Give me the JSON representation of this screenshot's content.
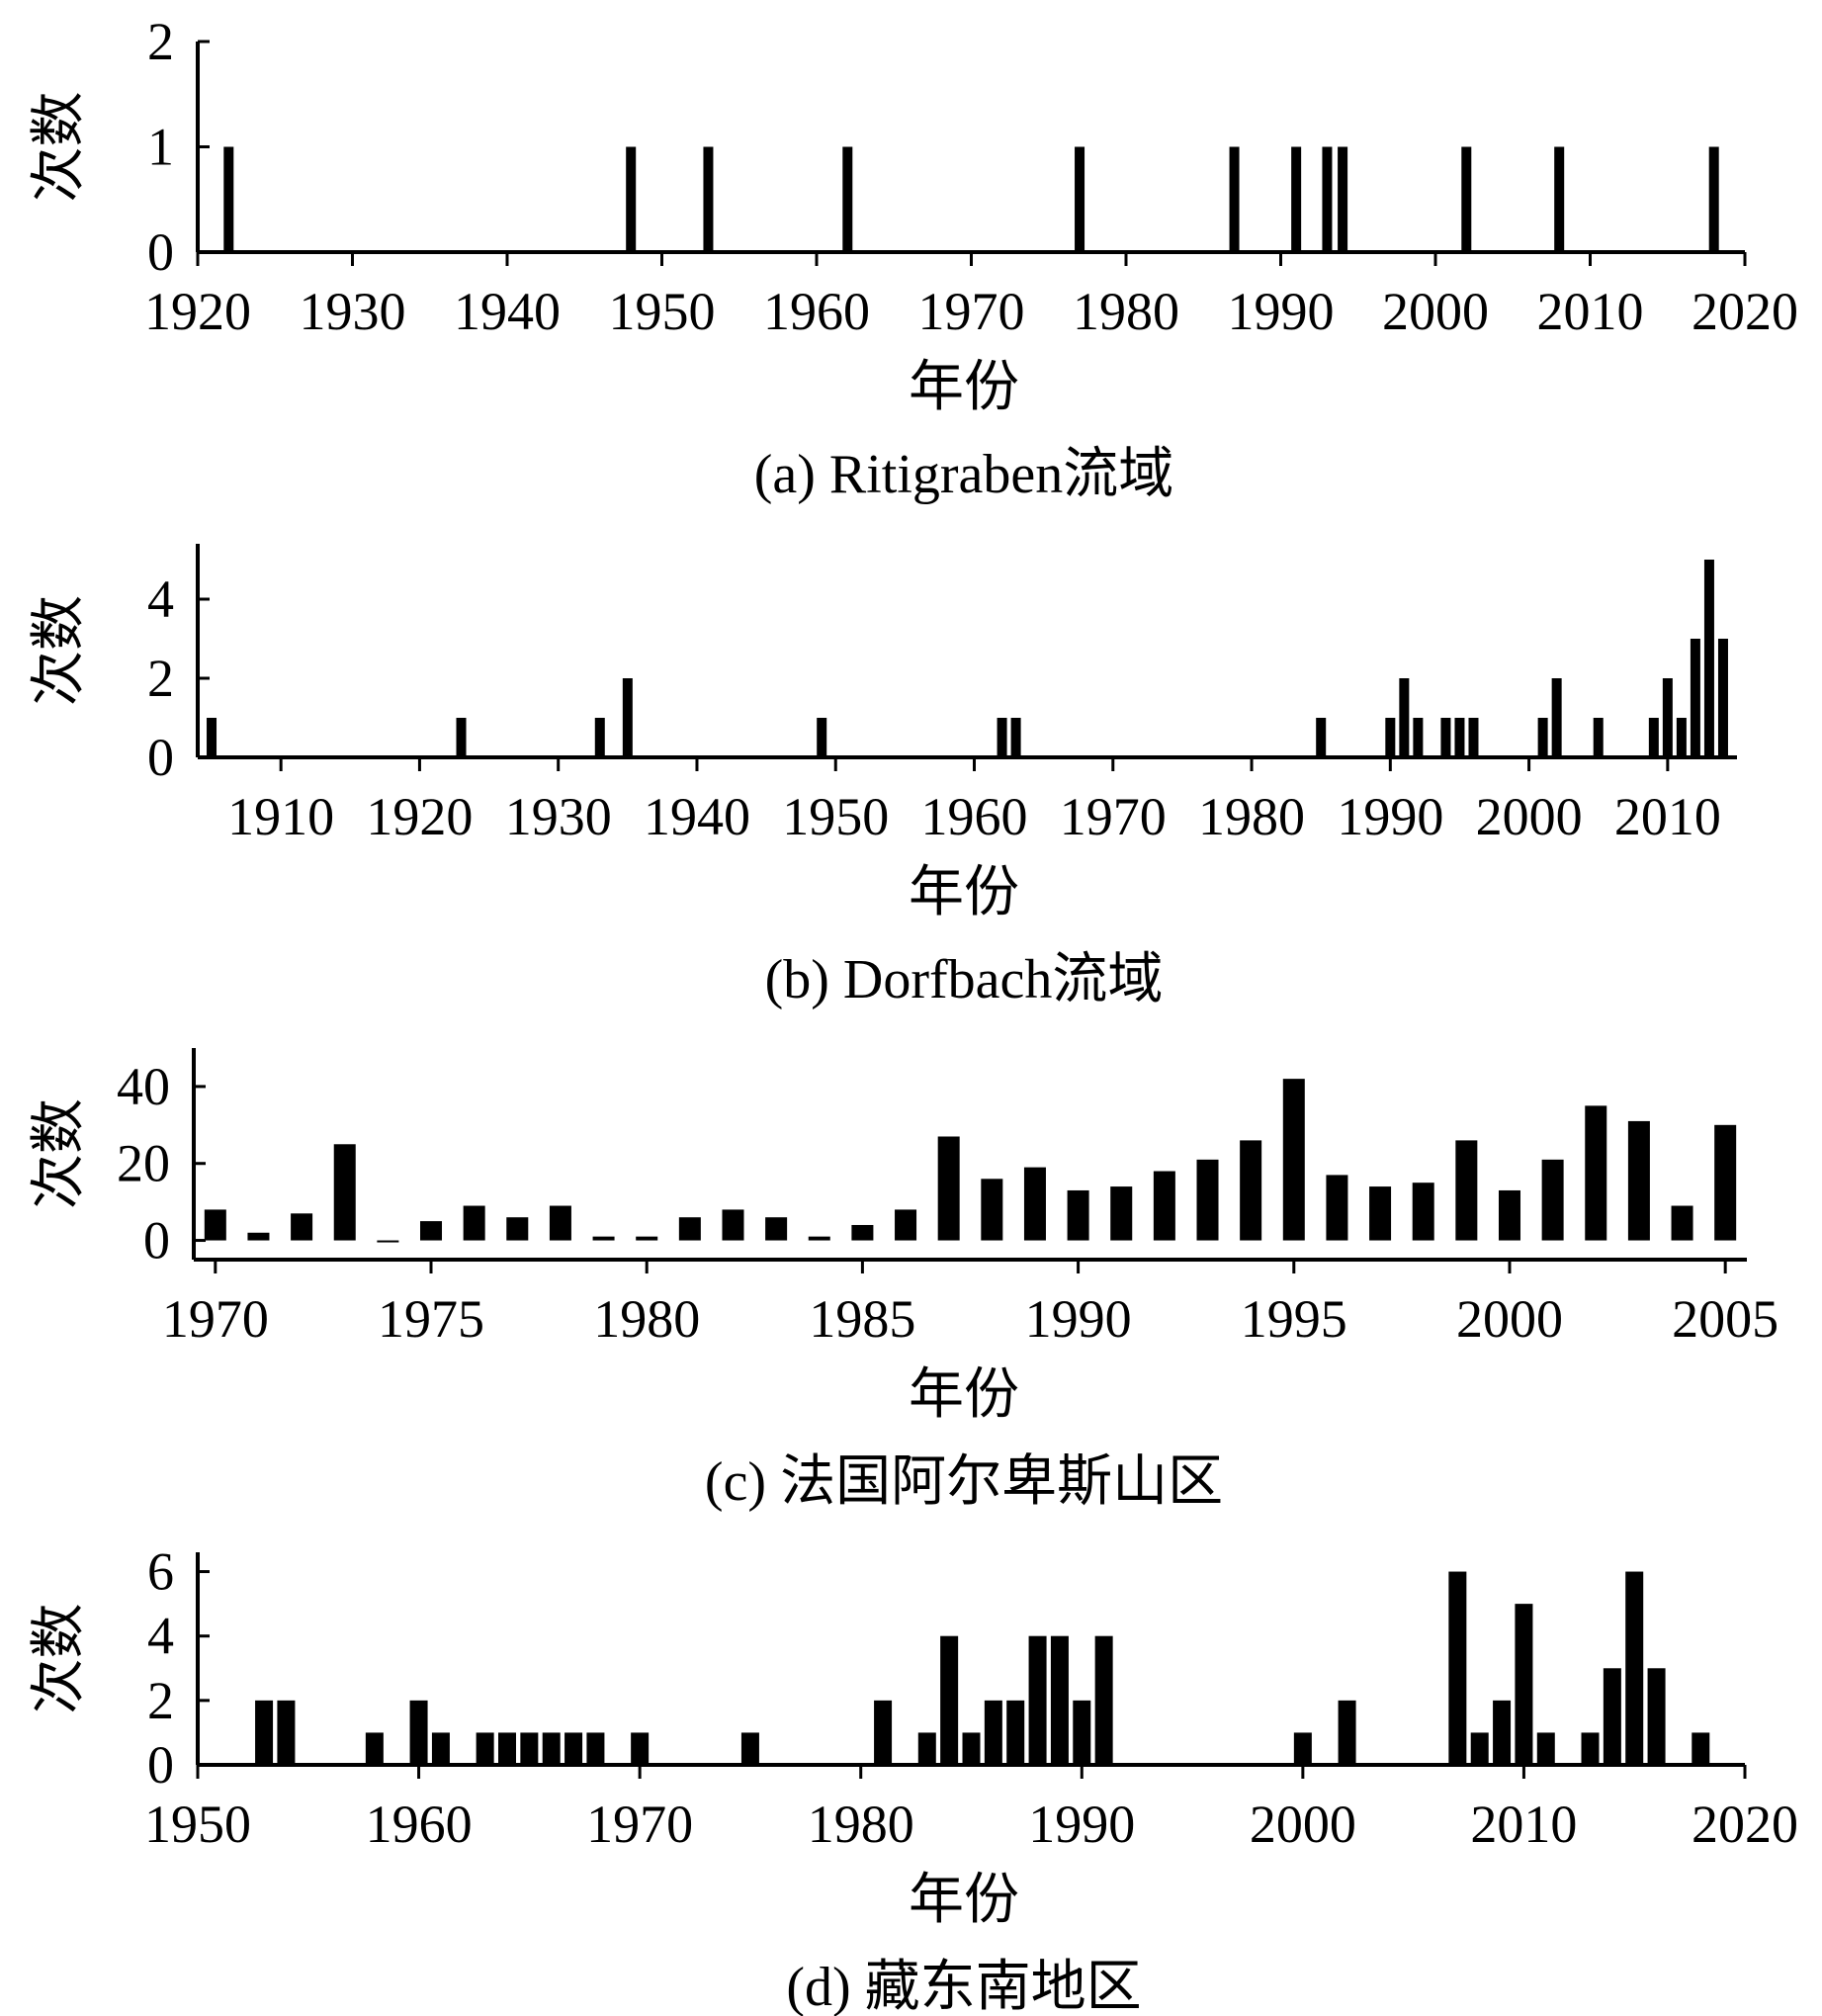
{
  "chart_data": [
    {
      "id": "a",
      "type": "bar",
      "caption": "(a) Ritigraben流域",
      "xlabel": "年份",
      "ylabel": "次数",
      "xlim": [
        1920,
        2020
      ],
      "ylim": [
        0,
        2
      ],
      "xticks": [
        1920,
        1930,
        1940,
        1950,
        1960,
        1970,
        1980,
        1990,
        2000,
        2010,
        2020
      ],
      "yticks": [
        0,
        1,
        2
      ],
      "points": [
        {
          "x": 1922,
          "y": 1
        },
        {
          "x": 1948,
          "y": 1
        },
        {
          "x": 1953,
          "y": 1
        },
        {
          "x": 1962,
          "y": 1
        },
        {
          "x": 1977,
          "y": 1
        },
        {
          "x": 1987,
          "y": 1
        },
        {
          "x": 1991,
          "y": 1
        },
        {
          "x": 1993,
          "y": 1
        },
        {
          "x": 1994,
          "y": 1
        },
        {
          "x": 2002,
          "y": 1
        },
        {
          "x": 2008,
          "y": 1
        },
        {
          "x": 2018,
          "y": 1
        }
      ]
    },
    {
      "id": "b",
      "type": "bar",
      "caption": "(b) Dorfbach流域",
      "xlabel": "年份",
      "ylabel": "次数",
      "xlim": [
        1904,
        2015
      ],
      "ylim": [
        0,
        5.4
      ],
      "xticks": [
        1910,
        1920,
        1930,
        1940,
        1950,
        1960,
        1970,
        1980,
        1990,
        2000,
        2010
      ],
      "yticks": [
        0,
        2,
        4
      ],
      "points": [
        {
          "x": 1905,
          "y": 1
        },
        {
          "x": 1923,
          "y": 1
        },
        {
          "x": 1933,
          "y": 1
        },
        {
          "x": 1935,
          "y": 2
        },
        {
          "x": 1949,
          "y": 1
        },
        {
          "x": 1962,
          "y": 1
        },
        {
          "x": 1963,
          "y": 1
        },
        {
          "x": 1985,
          "y": 1
        },
        {
          "x": 1990,
          "y": 1
        },
        {
          "x": 1991,
          "y": 2
        },
        {
          "x": 1992,
          "y": 1
        },
        {
          "x": 1994,
          "y": 1
        },
        {
          "x": 1995,
          "y": 1
        },
        {
          "x": 1996,
          "y": 1
        },
        {
          "x": 2001,
          "y": 1
        },
        {
          "x": 2002,
          "y": 2
        },
        {
          "x": 2005,
          "y": 1
        },
        {
          "x": 2009,
          "y": 1
        },
        {
          "x": 2010,
          "y": 2
        },
        {
          "x": 2011,
          "y": 1
        },
        {
          "x": 2012,
          "y": 3
        },
        {
          "x": 2013,
          "y": 5
        },
        {
          "x": 2014,
          "y": 3
        }
      ]
    },
    {
      "id": "c",
      "type": "bar",
      "caption": "(c) 法国阿尔卑斯山区",
      "xlabel": "年份",
      "ylabel": "次数",
      "xlim": [
        1969.5,
        2005.5
      ],
      "ylim": [
        -5,
        50
      ],
      "xticks": [
        1970,
        1975,
        1980,
        1985,
        1990,
        1995,
        2000,
        2005
      ],
      "yticks": [
        0,
        20,
        40
      ],
      "points": [
        {
          "x": 1970,
          "y": 8
        },
        {
          "x": 1971,
          "y": 2
        },
        {
          "x": 1972,
          "y": 7
        },
        {
          "x": 1973,
          "y": 25
        },
        {
          "x": 1974,
          "y": 0
        },
        {
          "x": 1975,
          "y": 5
        },
        {
          "x": 1976,
          "y": 9
        },
        {
          "x": 1977,
          "y": 6
        },
        {
          "x": 1978,
          "y": 9
        },
        {
          "x": 1979,
          "y": 1
        },
        {
          "x": 1980,
          "y": 1
        },
        {
          "x": 1981,
          "y": 6
        },
        {
          "x": 1982,
          "y": 8
        },
        {
          "x": 1983,
          "y": 6
        },
        {
          "x": 1984,
          "y": 1
        },
        {
          "x": 1985,
          "y": 4
        },
        {
          "x": 1986,
          "y": 8
        },
        {
          "x": 1987,
          "y": 27
        },
        {
          "x": 1988,
          "y": 16
        },
        {
          "x": 1989,
          "y": 19
        },
        {
          "x": 1990,
          "y": 13
        },
        {
          "x": 1991,
          "y": 14
        },
        {
          "x": 1992,
          "y": 18
        },
        {
          "x": 1993,
          "y": 21
        },
        {
          "x": 1994,
          "y": 26
        },
        {
          "x": 1995,
          "y": 42
        },
        {
          "x": 1996,
          "y": 17
        },
        {
          "x": 1997,
          "y": 14
        },
        {
          "x": 1998,
          "y": 15
        },
        {
          "x": 1999,
          "y": 26
        },
        {
          "x": 2000,
          "y": 13
        },
        {
          "x": 2001,
          "y": 21
        },
        {
          "x": 2002,
          "y": 35
        },
        {
          "x": 2003,
          "y": 31
        },
        {
          "x": 2004,
          "y": 9
        },
        {
          "x": 2005,
          "y": 30
        }
      ]
    },
    {
      "id": "d",
      "type": "bar",
      "caption": "(d) 藏东南地区",
      "xlabel": "年份",
      "ylabel": "次数",
      "xlim": [
        1950,
        2020
      ],
      "ylim": [
        0,
        6.6
      ],
      "xticks": [
        1950,
        1960,
        1970,
        1980,
        1990,
        2000,
        2010,
        2020
      ],
      "yticks": [
        0,
        2,
        4,
        6
      ],
      "points": [
        {
          "x": 1953,
          "y": 2
        },
        {
          "x": 1954,
          "y": 2
        },
        {
          "x": 1958,
          "y": 1
        },
        {
          "x": 1960,
          "y": 2
        },
        {
          "x": 1961,
          "y": 1
        },
        {
          "x": 1963,
          "y": 1
        },
        {
          "x": 1964,
          "y": 1
        },
        {
          "x": 1965,
          "y": 1
        },
        {
          "x": 1966,
          "y": 1
        },
        {
          "x": 1967,
          "y": 1
        },
        {
          "x": 1968,
          "y": 1
        },
        {
          "x": 1970,
          "y": 1
        },
        {
          "x": 1975,
          "y": 1
        },
        {
          "x": 1981,
          "y": 2
        },
        {
          "x": 1983,
          "y": 1
        },
        {
          "x": 1984,
          "y": 4
        },
        {
          "x": 1985,
          "y": 1
        },
        {
          "x": 1986,
          "y": 2
        },
        {
          "x": 1987,
          "y": 2
        },
        {
          "x": 1988,
          "y": 4
        },
        {
          "x": 1989,
          "y": 4
        },
        {
          "x": 1990,
          "y": 2
        },
        {
          "x": 1991,
          "y": 4
        },
        {
          "x": 2000,
          "y": 1
        },
        {
          "x": 2002,
          "y": 2
        },
        {
          "x": 2007,
          "y": 6
        },
        {
          "x": 2008,
          "y": 1
        },
        {
          "x": 2009,
          "y": 2
        },
        {
          "x": 2010,
          "y": 5
        },
        {
          "x": 2011,
          "y": 1
        },
        {
          "x": 2013,
          "y": 1
        },
        {
          "x": 2014,
          "y": 3
        },
        {
          "x": 2015,
          "y": 6
        },
        {
          "x": 2016,
          "y": 3
        },
        {
          "x": 2018,
          "y": 1
        }
      ]
    }
  ]
}
